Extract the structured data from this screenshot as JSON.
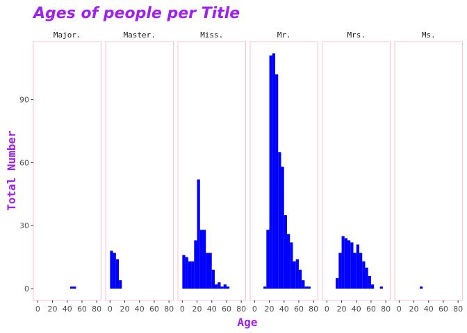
{
  "chart_data": {
    "type": "bar",
    "title": "Ages of people per Title",
    "xlabel": "Age",
    "ylabel": "Total Number",
    "colors": {
      "title": "#a020f0",
      "axis_title": "#a020f0",
      "bar": "#0000ff",
      "panel_border": "#ffc0cb"
    },
    "bin_width": 4,
    "xlim": [
      -6,
      86
    ],
    "ylim": [
      -5.6,
      117.6
    ],
    "x_ticks": [
      0,
      20,
      40,
      60,
      80
    ],
    "x_tick_labels": [
      "0",
      "20",
      "40",
      "60",
      "80"
    ],
    "y_ticks": [
      0,
      30,
      60,
      90
    ],
    "y_tick_labels": [
      "0",
      "30",
      "60",
      "90"
    ],
    "grid": false,
    "panels": [
      {
        "name": "Major.",
        "bins": [
          {
            "x0": 44,
            "x1": 52,
            "count": 1
          }
        ]
      },
      {
        "name": "Master.",
        "bins": [
          {
            "x0": 0,
            "x1": 4,
            "count": 18
          },
          {
            "x0": 4,
            "x1": 8,
            "count": 17
          },
          {
            "x0": 8,
            "x1": 12,
            "count": 14
          },
          {
            "x0": 12,
            "x1": 16,
            "count": 4
          }
        ]
      },
      {
        "name": "Miss.",
        "bins": [
          {
            "x0": 0,
            "x1": 4,
            "count": 16
          },
          {
            "x0": 4,
            "x1": 8,
            "count": 15
          },
          {
            "x0": 8,
            "x1": 12,
            "count": 13
          },
          {
            "x0": 12,
            "x1": 16,
            "count": 13
          },
          {
            "x0": 16,
            "x1": 20,
            "count": 23
          },
          {
            "x0": 20,
            "x1": 24,
            "count": 52
          },
          {
            "x0": 24,
            "x1": 28,
            "count": 28
          },
          {
            "x0": 28,
            "x1": 32,
            "count": 28
          },
          {
            "x0": 32,
            "x1": 36,
            "count": 17
          },
          {
            "x0": 36,
            "x1": 40,
            "count": 17
          },
          {
            "x0": 40,
            "x1": 44,
            "count": 9
          },
          {
            "x0": 44,
            "x1": 48,
            "count": 2
          },
          {
            "x0": 48,
            "x1": 52,
            "count": 3
          },
          {
            "x0": 52,
            "x1": 56,
            "count": 1
          },
          {
            "x0": 56,
            "x1": 60,
            "count": 2
          },
          {
            "x0": 60,
            "x1": 64,
            "count": 1
          }
        ]
      },
      {
        "name": "Mr.",
        "bins": [
          {
            "x0": 12,
            "x1": 16,
            "count": 1
          },
          {
            "x0": 16,
            "x1": 20,
            "count": 28
          },
          {
            "x0": 20,
            "x1": 24,
            "count": 111
          },
          {
            "x0": 24,
            "x1": 28,
            "count": 112
          },
          {
            "x0": 28,
            "x1": 32,
            "count": 102
          },
          {
            "x0": 32,
            "x1": 36,
            "count": 65
          },
          {
            "x0": 36,
            "x1": 40,
            "count": 58
          },
          {
            "x0": 40,
            "x1": 44,
            "count": 35
          },
          {
            "x0": 44,
            "x1": 48,
            "count": 26
          },
          {
            "x0": 48,
            "x1": 52,
            "count": 22
          },
          {
            "x0": 52,
            "x1": 56,
            "count": 13
          },
          {
            "x0": 56,
            "x1": 60,
            "count": 14
          },
          {
            "x0": 60,
            "x1": 64,
            "count": 9
          },
          {
            "x0": 64,
            "x1": 68,
            "count": 4
          },
          {
            "x0": 68,
            "x1": 76,
            "count": 1
          }
        ]
      },
      {
        "name": "Mrs.",
        "bins": [
          {
            "x0": 12,
            "x1": 16,
            "count": 5
          },
          {
            "x0": 16,
            "x1": 20,
            "count": 17
          },
          {
            "x0": 20,
            "x1": 24,
            "count": 25
          },
          {
            "x0": 24,
            "x1": 28,
            "count": 24
          },
          {
            "x0": 28,
            "x1": 32,
            "count": 23
          },
          {
            "x0": 32,
            "x1": 36,
            "count": 22
          },
          {
            "x0": 36,
            "x1": 40,
            "count": 17
          },
          {
            "x0": 40,
            "x1": 44,
            "count": 21
          },
          {
            "x0": 44,
            "x1": 48,
            "count": 17
          },
          {
            "x0": 48,
            "x1": 52,
            "count": 13
          },
          {
            "x0": 52,
            "x1": 56,
            "count": 10
          },
          {
            "x0": 56,
            "x1": 60,
            "count": 6
          },
          {
            "x0": 60,
            "x1": 64,
            "count": 2
          },
          {
            "x0": 72,
            "x1": 76,
            "count": 1
          }
        ]
      },
      {
        "name": "Ms.",
        "bins": [
          {
            "x0": 28,
            "x1": 32,
            "count": 1
          }
        ]
      }
    ]
  }
}
